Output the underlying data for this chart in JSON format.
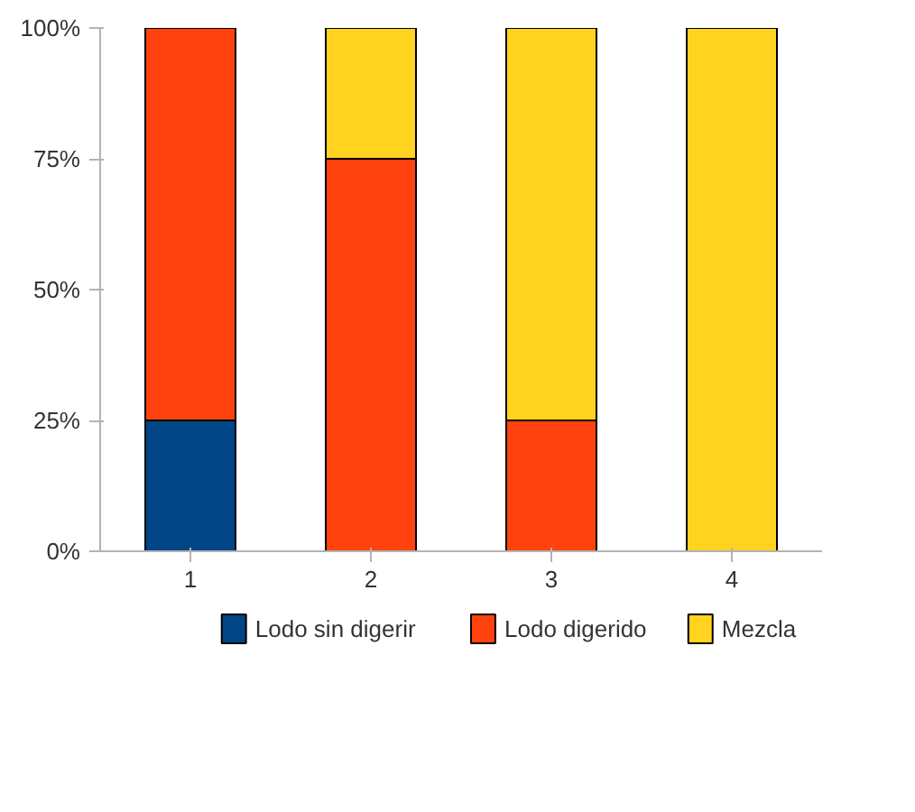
{
  "chart_data": {
    "type": "bar",
    "stacked": true,
    "categories": [
      "1",
      "2",
      "3",
      "4"
    ],
    "series": [
      {
        "name": "Lodo sin digerir",
        "color": "#004586",
        "values": [
          25,
          0,
          0,
          0
        ]
      },
      {
        "name": "Lodo digerido",
        "color": "#ff420e",
        "values": [
          75,
          75,
          25,
          0
        ]
      },
      {
        "name": "Mezcla",
        "color": "#ffd320",
        "values": [
          0,
          25,
          75,
          100
        ]
      }
    ],
    "ylim": [
      0,
      100
    ],
    "yticks": [
      {
        "value": 0,
        "label": "0%"
      },
      {
        "value": 25,
        "label": "25%"
      },
      {
        "value": 50,
        "label": "50%"
      },
      {
        "value": 75,
        "label": "75%"
      },
      {
        "value": 100,
        "label": "100%"
      }
    ],
    "grid": false,
    "legend": "bottom"
  }
}
